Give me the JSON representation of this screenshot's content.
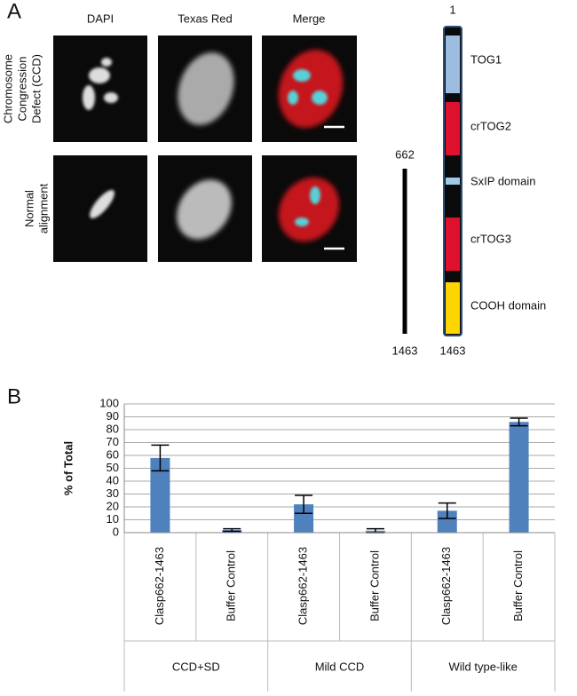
{
  "panel_a": {
    "label": "A",
    "columns": [
      "DAPI",
      "Texas Red",
      "Merge"
    ],
    "rows": [
      [
        "Chromosome",
        "Congression",
        "Defect (CCD)"
      ],
      [
        "Normal",
        "alignment"
      ]
    ],
    "schematic": {
      "start": "1",
      "end": "1463",
      "domains": [
        "TOG1",
        "crTOG2",
        "SxIP domain",
        "crTOG3",
        "COOH domain"
      ]
    },
    "fragment": {
      "start": "662",
      "end": "1463"
    }
  },
  "panel_b": {
    "label": "B"
  },
  "chart_data": {
    "type": "bar",
    "categories": [
      "Clasp662-1463",
      "Buffer Control",
      "Clasp662-1463",
      "Buffer Control",
      "Clasp662-1463",
      "Buffer Control"
    ],
    "groups": [
      "CCD+SD",
      "Mild CCD",
      "Wild type-like"
    ],
    "values": [
      58,
      2,
      22,
      1.5,
      17,
      86
    ],
    "errors": [
      10,
      1,
      7,
      1.5,
      6,
      3
    ],
    "color": "#4f81bd",
    "y_label": "% of Total",
    "ylim": [
      0,
      100
    ],
    "yticks": [
      0,
      10,
      20,
      30,
      40,
      50,
      60,
      70,
      80,
      90,
      100
    ],
    "grid": true
  }
}
